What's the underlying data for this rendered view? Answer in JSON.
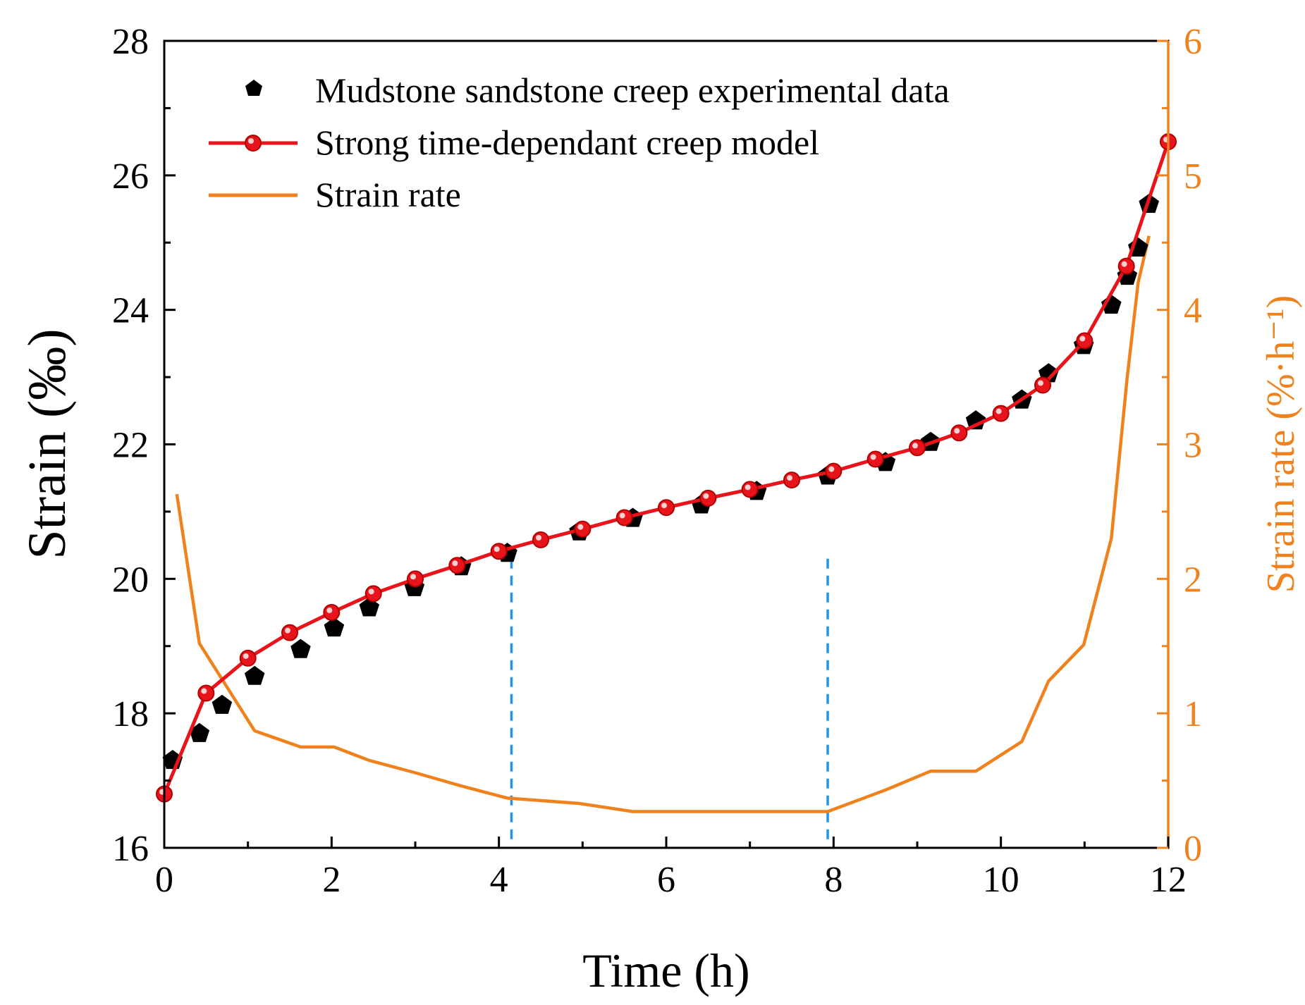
{
  "chart_data": {
    "type": "line",
    "xlabel": "Time (h)",
    "ylabel": "Strain (‰)",
    "y2label": "Strain rate (%·h⁻¹)",
    "xlim": [
      0,
      12
    ],
    "ylim": [
      16,
      28
    ],
    "y2lim": [
      0,
      6
    ],
    "x_ticks": [
      "0",
      "2",
      "4",
      "6",
      "8",
      "10",
      "12"
    ],
    "y_ticks": [
      "16",
      "18",
      "20",
      "22",
      "24",
      "26",
      "28"
    ],
    "y2_ticks": [
      "0",
      "1",
      "2",
      "3",
      "4",
      "5",
      "6"
    ],
    "colors": {
      "experimental": "#000000",
      "model": "#e8141b",
      "strain_rate": "#f0821e",
      "divider": "#2196e8"
    },
    "legend": {
      "placement": "top-left",
      "entries": [
        "Mudstone sandstone creep experimental data",
        "Strong time-dependant creep model",
        "Strain rate"
      ]
    },
    "dividers_x": [
      4.15,
      7.93
    ],
    "series": [
      {
        "name": "Mudstone sandstone creep experimental data",
        "axis": "left",
        "marker": "pentagon",
        "x": [
          0.1,
          0.42,
          0.69,
          1.08,
          1.63,
          2.03,
          2.45,
          2.99,
          3.55,
          4.1,
          4.96,
          5.6,
          6.42,
          7.08,
          7.93,
          8.62,
          9.16,
          9.7,
          10.25,
          10.57,
          10.99,
          11.32,
          11.51,
          11.64,
          11.77
        ],
        "y": [
          17.3,
          17.7,
          18.12,
          18.55,
          18.95,
          19.27,
          19.57,
          19.87,
          20.18,
          20.38,
          20.7,
          20.9,
          21.1,
          21.3,
          21.53,
          21.73,
          22.03,
          22.35,
          22.66,
          23.05,
          23.47,
          24.07,
          24.5,
          24.92,
          25.57
        ]
      },
      {
        "name": "Strong time-dependant creep model",
        "axis": "left",
        "marker": "circle",
        "x": [
          0.0,
          0.5,
          1.0,
          1.5,
          2.0,
          2.5,
          3.0,
          3.5,
          4.0,
          4.5,
          5.0,
          5.5,
          6.0,
          6.5,
          7.0,
          7.5,
          8.0,
          8.5,
          9.0,
          9.5,
          10.0,
          10.5,
          11.0,
          11.5,
          12.0
        ],
        "y": [
          16.8,
          18.3,
          18.82,
          19.2,
          19.5,
          19.78,
          20.0,
          20.2,
          20.41,
          20.58,
          20.74,
          20.91,
          21.06,
          21.2,
          21.33,
          21.47,
          21.6,
          21.78,
          21.95,
          22.17,
          22.46,
          22.88,
          23.54,
          24.65,
          26.5
        ]
      },
      {
        "name": "Strain rate",
        "axis": "right",
        "marker": "none",
        "x": [
          0.15,
          0.42,
          1.08,
          1.63,
          2.03,
          2.45,
          2.99,
          3.55,
          4.1,
          4.96,
          5.6,
          6.42,
          7.08,
          7.93,
          8.62,
          9.16,
          9.7,
          10.25,
          10.57,
          10.99,
          11.32,
          11.51,
          11.64,
          11.77
        ],
        "y": [
          2.63,
          1.52,
          0.87,
          0.75,
          0.75,
          0.65,
          0.56,
          0.46,
          0.37,
          0.33,
          0.27,
          0.27,
          0.27,
          0.27,
          0.43,
          0.57,
          0.57,
          0.79,
          1.24,
          1.51,
          2.3,
          3.5,
          4.2,
          4.55
        ]
      }
    ]
  }
}
